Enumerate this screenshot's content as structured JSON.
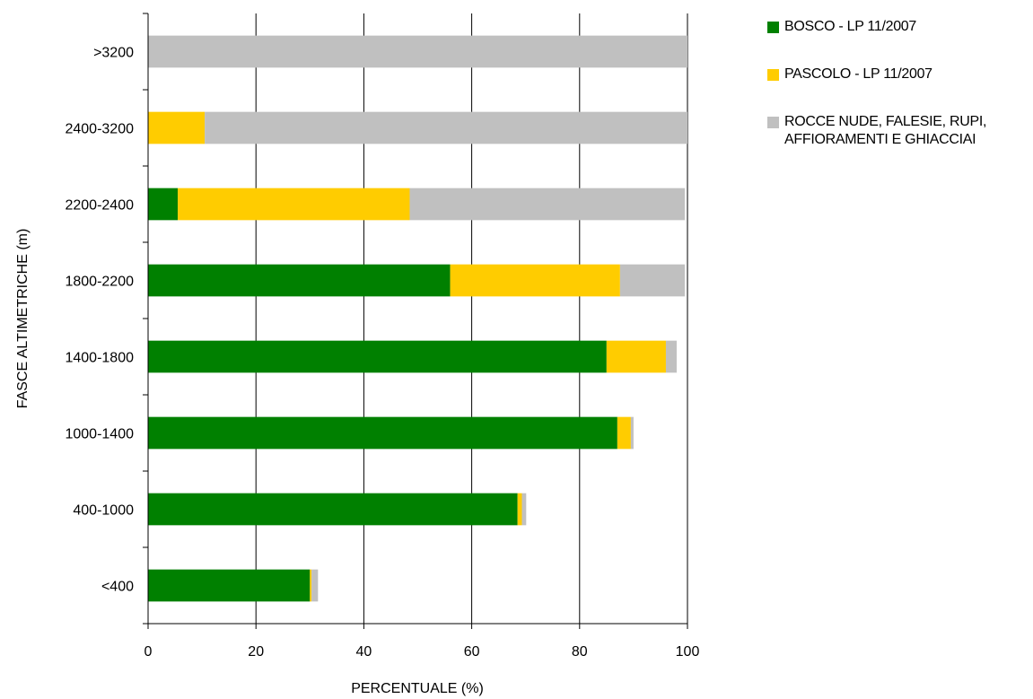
{
  "chart_data": {
    "type": "bar",
    "orientation": "horizontal",
    "stacked": true,
    "xlabel": "PERCENTUALE (%)",
    "ylabel": "FASCE ALTIMETRICHE (m)",
    "xlim": [
      0,
      100
    ],
    "xticks": [
      0,
      20,
      40,
      60,
      80,
      100
    ],
    "grid": "vertical",
    "legend_position": "top-right",
    "categories": [
      "<400",
      "400-1000",
      "1000-1400",
      "1400-1800",
      "1800-2200",
      "2200-2400",
      "2400-3200",
      ">3200"
    ],
    "series": [
      {
        "name": "BOSCO - LP 11/2007",
        "color": "#008000",
        "values": [
          30.0,
          68.5,
          87.0,
          85.0,
          56.0,
          5.5,
          0.0,
          0.0
        ]
      },
      {
        "name": "PASCOLO - LP 11/2007",
        "color": "#FFCC00",
        "values": [
          0.3,
          0.8,
          2.5,
          11.0,
          31.5,
          43.0,
          10.5,
          0.0
        ]
      },
      {
        "name": "ROCCE NUDE, FALESIE, RUPI, AFFIORAMENTI E GHIACCIAI",
        "color": "#C0C0C0",
        "values": [
          1.2,
          0.8,
          0.5,
          2.0,
          12.0,
          51.0,
          89.5,
          100.0
        ]
      }
    ]
  }
}
